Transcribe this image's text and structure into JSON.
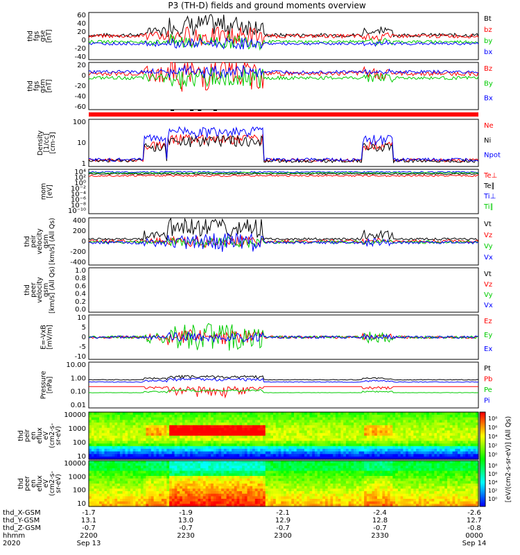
{
  "title": "P3 (TH-D) fields and ground moments overview",
  "colors": {
    "black": "#000000",
    "red": "#ff0000",
    "green": "#00cc00",
    "blue": "#0000ff"
  },
  "chart_data": [
    {
      "type": "line",
      "panel": "fgs_gse",
      "ylabel_lines": [
        "thd",
        "fgs",
        "gse",
        "[nT]"
      ],
      "yticks": [
        "60",
        "40",
        "20",
        "0",
        "-20",
        "-40"
      ],
      "ylim": [
        -40,
        60
      ],
      "legend": [
        {
          "name": "Bt",
          "color": "black"
        },
        {
          "name": "bz",
          "color": "red"
        },
        {
          "name": "by",
          "color": "green"
        },
        {
          "name": "bx",
          "color": "blue"
        }
      ],
      "series": [
        {
          "name": "Bt",
          "base": 12,
          "noise": 4,
          "burst": 22
        },
        {
          "name": "bz",
          "base": 10,
          "noise": 4,
          "burst": 20
        },
        {
          "name": "by",
          "base": -2,
          "noise": 3,
          "burst": 15
        },
        {
          "name": "bx",
          "base": -6,
          "noise": 3,
          "burst": 10
        }
      ]
    },
    {
      "type": "line",
      "panel": "fgs_gsm",
      "ylabel_lines": [
        "thd",
        "fgs",
        "gsm",
        "[nT]"
      ],
      "yticks": [
        "20",
        "0",
        "-20",
        "-40",
        "-60"
      ],
      "ylim": [
        -60,
        25
      ],
      "legend": [
        {
          "name": "Bz",
          "color": "red"
        },
        {
          "name": "By",
          "color": "green"
        },
        {
          "name": "Bx",
          "color": "blue"
        }
      ],
      "series": [
        {
          "name": "Bz",
          "base": 5,
          "noise": 4,
          "burst": 30
        },
        {
          "name": "By",
          "base": -3,
          "noise": 3,
          "burst": 18
        },
        {
          "name": "Bx",
          "base": 8,
          "noise": 3,
          "burst": 10
        }
      ]
    },
    {
      "type": "line",
      "panel": "density",
      "ylabel_lines": [
        "Density",
        "[1/cc]",
        "[cm-3]"
      ],
      "yticks": [
        "100",
        "10",
        "1"
      ],
      "ylim": [
        0.7,
        200
      ],
      "log": true,
      "legend": [
        {
          "name": "Ne",
          "color": "red"
        },
        {
          "name": "Ni",
          "color": "black"
        },
        {
          "name": "Npot",
          "color": "blue"
        }
      ],
      "series": [
        {
          "name": "Ne",
          "base": 1.5,
          "noise": 0.2,
          "burst": 25
        },
        {
          "name": "Ni",
          "base": 1.4,
          "noise": 0.2,
          "burst": 20
        },
        {
          "name": "Npot",
          "base": 1.6,
          "noise": 0.2,
          "burst": 60
        }
      ]
    },
    {
      "type": "line",
      "panel": "temperature",
      "ylabel_lines": [
        "mom",
        "[eV]"
      ],
      "yticks": [
        "10⁴",
        "10²",
        "10⁰",
        "10⁻²",
        "10⁻⁴",
        "10⁻⁶",
        "10⁻⁸",
        "10⁻¹⁰"
      ],
      "ylim": [
        -10,
        4.5
      ],
      "legend": [
        {
          "name": "Te⊥",
          "color": "red"
        },
        {
          "name": "Te∥",
          "color": "black"
        },
        {
          "name": "Ti⊥",
          "color": "blue"
        },
        {
          "name": "Ti∥",
          "color": "green"
        }
      ],
      "series": [
        {
          "name": "Te⊥",
          "base": 2.4,
          "noise": 0.3,
          "burst": 0
        },
        {
          "name": "Te∥",
          "base": 3.0,
          "noise": 0.2,
          "burst": 0
        },
        {
          "name": "Ti⊥",
          "base": 3.6,
          "noise": 0.2,
          "burst": 0
        },
        {
          "name": "Ti∥",
          "base": 3.3,
          "noise": 0.2,
          "burst": 0
        }
      ]
    },
    {
      "type": "line",
      "panel": "peir_velocity",
      "ylabel_lines": [
        "thd",
        "peir",
        "velocity",
        "gsm",
        "[km/s] (All Qs)"
      ],
      "yticks": [
        "400",
        "200",
        "0",
        "-200",
        "-400"
      ],
      "ylim": [
        -400,
        400
      ],
      "legend": [
        {
          "name": "Vt",
          "color": "black"
        },
        {
          "name": "Vz",
          "color": "red"
        },
        {
          "name": "Vy",
          "color": "green"
        },
        {
          "name": "Vx",
          "color": "blue"
        }
      ],
      "series": [
        {
          "name": "Vt",
          "base": 40,
          "noise": 20,
          "burst": 180
        },
        {
          "name": "Vz",
          "base": 5,
          "noise": 25,
          "burst": 80
        },
        {
          "name": "Vy",
          "base": -10,
          "noise": 25,
          "burst": 80
        },
        {
          "name": "Vx",
          "base": -20,
          "noise": 25,
          "burst": -150
        }
      ]
    },
    {
      "type": "line",
      "panel": "peer_velocity",
      "ylabel_lines": [
        "thd",
        "peer",
        "velocity",
        "gsm",
        "[km/s] (All Qs)"
      ],
      "yticks": [
        "1.0",
        "0.8",
        "0.6",
        "0.4",
        "0.2",
        "0.0"
      ],
      "ylim": [
        0,
        1
      ],
      "legend": [
        {
          "name": "Vt",
          "color": "black"
        },
        {
          "name": "Vz",
          "color": "red"
        },
        {
          "name": "Vy",
          "color": "green"
        },
        {
          "name": "Vx",
          "color": "blue"
        }
      ],
      "series": []
    },
    {
      "type": "line",
      "panel": "efield",
      "ylabel_lines": [
        "E=-VxB",
        "[mV/m]"
      ],
      "yticks": [
        "10",
        "5",
        "0",
        "-5",
        "-10"
      ],
      "ylim": [
        -10,
        10
      ],
      "legend": [
        {
          "name": "Ez",
          "color": "red"
        },
        {
          "name": "Ey",
          "color": "green"
        },
        {
          "name": "Ex",
          "color": "blue"
        }
      ],
      "series": [
        {
          "name": "Ez",
          "base": 0,
          "noise": 0.6,
          "burst": 3
        },
        {
          "name": "Ey",
          "base": 0,
          "noise": 0.6,
          "burst": 6
        },
        {
          "name": "Ex",
          "base": 0,
          "noise": 0.6,
          "burst": 2
        }
      ]
    },
    {
      "type": "line",
      "panel": "pressure",
      "ylabel_lines": [
        "Pressure",
        "[nPa]"
      ],
      "yticks": [
        "10.00",
        "1.00",
        "0.10",
        "0.01"
      ],
      "ylim": [
        0.01,
        10
      ],
      "log": true,
      "legend": [
        {
          "name": "Pt",
          "color": "black"
        },
        {
          "name": "Pb",
          "color": "red"
        },
        {
          "name": "Pe",
          "color": "green"
        },
        {
          "name": "Pi",
          "color": "blue"
        }
      ],
      "series": [
        {
          "name": "Pt",
          "base": 0.7,
          "noise": 0.05,
          "burst": 0.5
        },
        {
          "name": "Pb",
          "base": 0.25,
          "noise": 0.1,
          "burst": -0.2
        },
        {
          "name": "Pe",
          "base": 0.1,
          "noise": 0.02,
          "burst": 0.05
        },
        {
          "name": "Pi",
          "base": 0.5,
          "noise": 0.05,
          "burst": 0.3
        }
      ]
    },
    {
      "type": "heatmap",
      "panel": "peir_en_eflux",
      "ylabel_lines": [
        "thd",
        "peir",
        "en",
        "eflux",
        "eV",
        "(cm2-s-",
        "sr-eV)"
      ],
      "yticks": [
        "10000",
        "1000",
        "100",
        "10"
      ]
    },
    {
      "type": "heatmap",
      "panel": "peer_en_eflux",
      "ylabel_lines": [
        "thd",
        "peer",
        "en",
        "eflux",
        "eV",
        "(cm2-s-",
        "sr-eV)"
      ],
      "yticks": [
        "10000",
        "1000",
        "100",
        "10"
      ]
    }
  ],
  "colorbar": {
    "label": "[eV/(cm2-s-sr-eV)] (All Qs)",
    "ticks_top": [
      "10⁸",
      "10⁶",
      "10⁴",
      "10²",
      "10⁰"
    ],
    "ticks_bottom": [
      "10⁸",
      "10⁶",
      "10⁴",
      "10²",
      "10⁰"
    ]
  },
  "xaxis": {
    "rows": [
      {
        "label": "thd_X-GSM",
        "values": [
          "-1.7",
          "-1.9",
          "-2.1",
          "-2.4",
          "-2.6"
        ]
      },
      {
        "label": "thd_Y-GSM",
        "values": [
          "13.1",
          "13.0",
          "12.9",
          "12.8",
          "12.7"
        ]
      },
      {
        "label": "thd_Z-GSM",
        "values": [
          "-0.7",
          "-0.7",
          "-0.7",
          "-0.7",
          "-0.8"
        ]
      },
      {
        "label": "hhmm",
        "values": [
          "2200",
          "2230",
          "2300",
          "2330",
          "0000"
        ]
      },
      {
        "label": "2020",
        "values": [
          "Sep 13",
          "",
          "",
          "",
          "Sep 14"
        ]
      }
    ]
  }
}
